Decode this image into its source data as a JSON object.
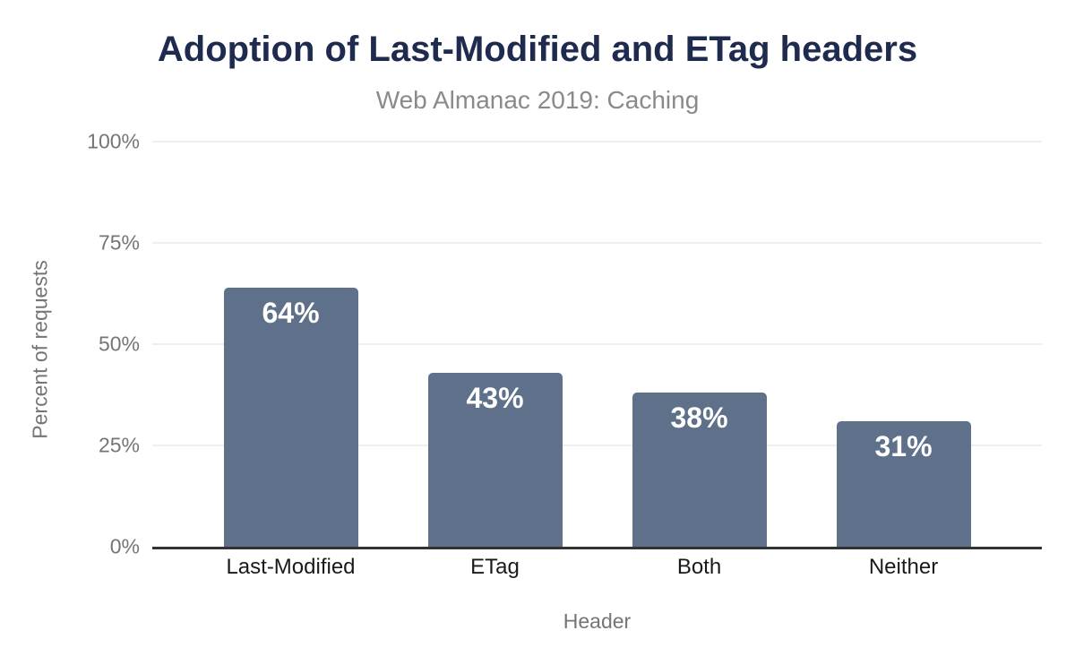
{
  "chart": {
    "title": "Adoption of Last-Modified and ETag headers",
    "subtitle": "Web Almanac 2019: Caching"
  },
  "chart_data": {
    "type": "bar",
    "title": "Adoption of Last-Modified and ETag headers",
    "subtitle": "Web Almanac 2019: Caching",
    "categories": [
      "Last-Modified",
      "ETag",
      "Both",
      "Neither"
    ],
    "values": [
      64,
      43,
      38,
      31
    ],
    "value_labels": [
      "64%",
      "43%",
      "38%",
      "31%"
    ],
    "xlabel": "Header",
    "ylabel": "Percent of requests",
    "ylim": [
      0,
      100
    ],
    "y_ticks": [
      {
        "value": 0,
        "label": "0%"
      },
      {
        "value": 25,
        "label": "25%"
      },
      {
        "value": 50,
        "label": "50%"
      },
      {
        "value": 75,
        "label": "75%"
      },
      {
        "value": 100,
        "label": "100%"
      }
    ],
    "grid": "horizontal",
    "legend": "none",
    "colors": {
      "bar": "#5f708a",
      "title": "#1e2a4e",
      "subtitle": "#8a8a8a",
      "axis_text": "#757575",
      "category_text": "#1a1a1a",
      "gridline": "#efefef",
      "axis_line": "#333333",
      "value_label": "#ffffff"
    }
  }
}
